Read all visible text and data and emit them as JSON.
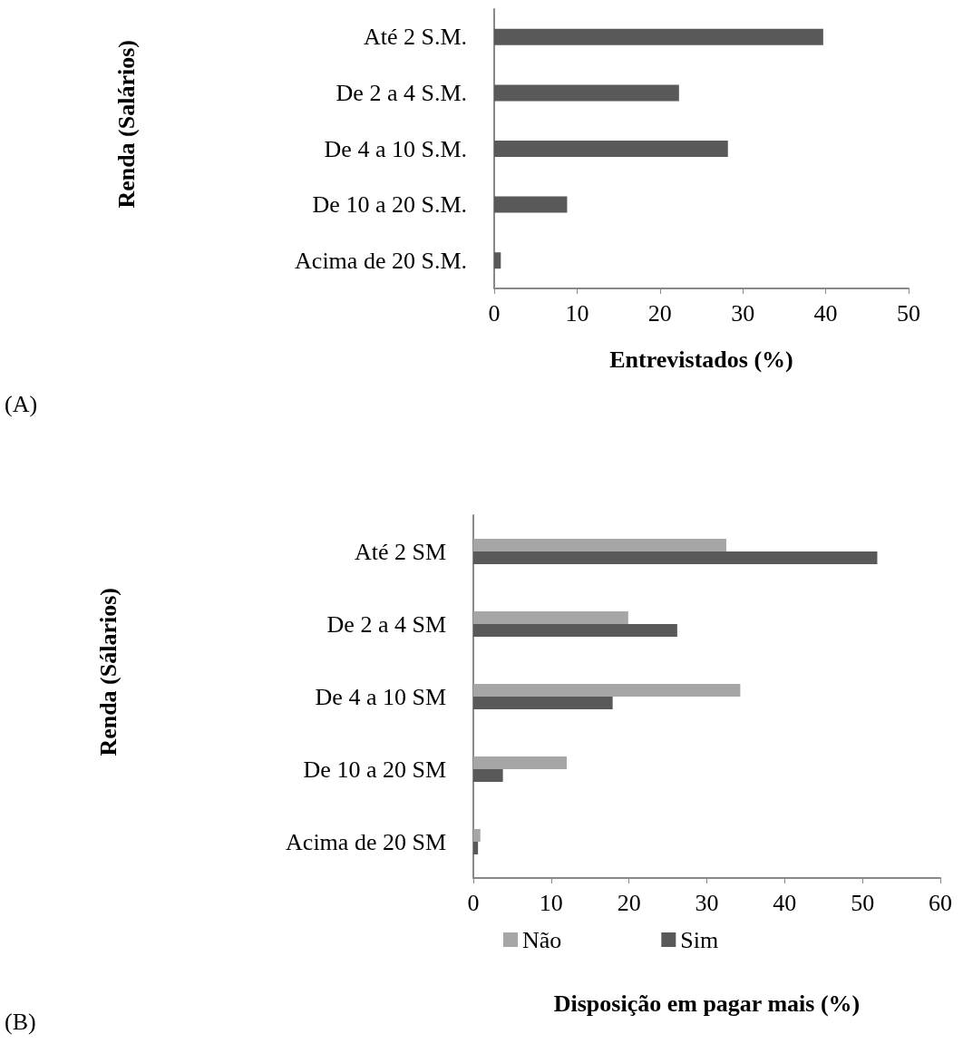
{
  "chart_data": [
    {
      "type": "bar",
      "orientation": "horizontal",
      "categories": [
        "Até 2 S.M.",
        "De 2 a 4 S.M.",
        "De 4 a 10 S.M.",
        "De 10 a 20 S.M.",
        "Acima de 20 S.M."
      ],
      "values": [
        39.7,
        22.3,
        28.2,
        8.8,
        0.8
      ],
      "color": "#595959",
      "xlim": [
        0,
        50
      ],
      "xticks": [
        0,
        10,
        20,
        30,
        40,
        50
      ],
      "xlabel": "Entrevistados (%)",
      "ylabel": "Renda (Salários)",
      "annotations": [
        "(A)"
      ]
    },
    {
      "type": "bar",
      "orientation": "horizontal",
      "categories": [
        "Até 2 SM",
        "De 2 a 4 SM",
        "De 4 a 10 SM",
        "De 10 a 20 SM",
        "Acima de 20 SM"
      ],
      "series": [
        {
          "name": "Não",
          "color": "#a6a6a6",
          "values": [
            32.5,
            19.9,
            34.3,
            12.0,
            0.9
          ]
        },
        {
          "name": "Sim",
          "color": "#595959",
          "values": [
            51.9,
            26.2,
            17.9,
            3.8,
            0.6
          ]
        }
      ],
      "xlim": [
        0,
        60
      ],
      "xticks": [
        0,
        10,
        20,
        30,
        40,
        50,
        60
      ],
      "xlabel": "Disposição em pagar mais (%)",
      "ylabel": "Renda (Sálarios)",
      "legend": "bottom",
      "annotations": [
        "(B)"
      ]
    }
  ]
}
